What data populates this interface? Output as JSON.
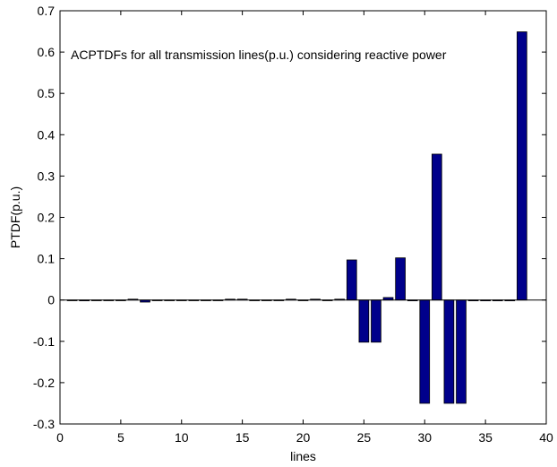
{
  "chart_data": {
    "type": "bar",
    "annotation": "ACPTDFs for all transmission lines(p.u.) considering reactive power",
    "xlabel": "lines",
    "ylabel": "PTDF(p.u.)",
    "xlim": [
      0,
      40
    ],
    "ylim": [
      -0.3,
      0.7
    ],
    "xticks": [
      0,
      5,
      10,
      15,
      20,
      25,
      30,
      35,
      40
    ],
    "xtick_labels": [
      "0",
      "5",
      "10",
      "15",
      "20",
      "25",
      "30",
      "35",
      "40"
    ],
    "yticks": [
      -0.3,
      -0.2,
      -0.1,
      0,
      0.1,
      0.2,
      0.3,
      0.4,
      0.5,
      0.6,
      0.7
    ],
    "ytick_labels": [
      "-0.3",
      "-0.2",
      "-0.1",
      "0",
      "0.1",
      "0.2",
      "0.3",
      "0.4",
      "0.5",
      "0.6",
      "0.7"
    ],
    "grid": false,
    "bar_color": "#00008B",
    "x": [
      1,
      2,
      3,
      4,
      5,
      6,
      7,
      8,
      9,
      10,
      11,
      12,
      13,
      14,
      15,
      16,
      17,
      18,
      19,
      20,
      21,
      22,
      23,
      24,
      25,
      26,
      27,
      28,
      29,
      30,
      31,
      32,
      33,
      34,
      35,
      36,
      37,
      38
    ],
    "values": [
      0,
      -0.002,
      0,
      0,
      0,
      0.002,
      -0.005,
      0,
      0,
      0,
      0,
      0,
      0,
      0.002,
      0.002,
      0,
      0,
      0,
      0.002,
      0,
      0.002,
      0,
      0.002,
      0.097,
      -0.102,
      -0.102,
      0.006,
      0.102,
      -0.002,
      -0.25,
      0.353,
      -0.25,
      -0.25,
      -0.002,
      -0.002,
      -0.002,
      -0.002,
      0.649
    ]
  }
}
